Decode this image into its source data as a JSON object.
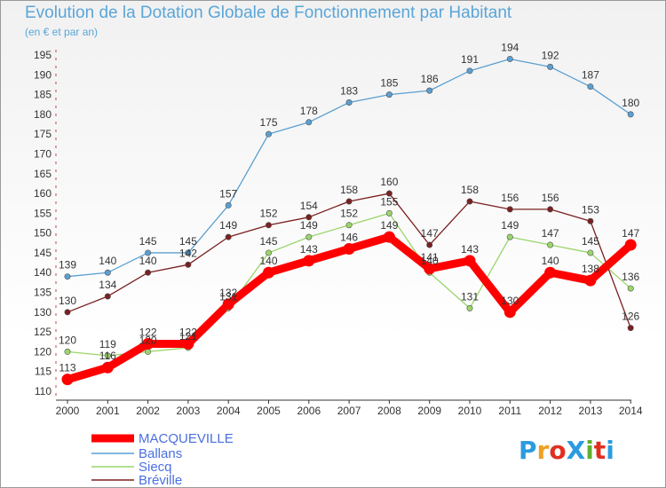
{
  "title": "Evolution de la Dotation Globale de Fonctionnement par Habitant",
  "subtitle": "(en € et par an)",
  "logo": {
    "text": "ProXiti",
    "colors": [
      "#2b9be0",
      "#f0a020",
      "#e03020",
      "#2b9be0",
      "#60b030",
      "#e03020",
      "#2b9be0"
    ]
  },
  "chart_data": {
    "type": "line",
    "x": [
      2000,
      2001,
      2002,
      2003,
      2004,
      2005,
      2006,
      2007,
      2008,
      2009,
      2010,
      2011,
      2012,
      2013,
      2014
    ],
    "ylim": [
      110,
      195
    ],
    "yticks": [
      110,
      115,
      120,
      125,
      130,
      135,
      140,
      145,
      150,
      155,
      160,
      165,
      170,
      175,
      180,
      185,
      190,
      195
    ],
    "grid": false,
    "legend": "bottom-left",
    "series": [
      {
        "name": "MACQUEVILLE",
        "color": "#ff0000",
        "values": [
          113,
          116,
          122,
          122,
          132,
          140,
          143,
          146,
          149,
          141,
          143,
          130,
          140,
          138,
          147
        ]
      },
      {
        "name": "Ballans",
        "color": "#5b9fd0",
        "values": [
          139,
          140,
          145,
          145,
          157,
          175,
          178,
          183,
          185,
          186,
          191,
          194,
          192,
          187,
          180
        ]
      },
      {
        "name": "Siecq",
        "color": "#9ad56a",
        "values": [
          120,
          119,
          120,
          121,
          131,
          145,
          149,
          152,
          155,
          140,
          131,
          149,
          147,
          145,
          136
        ]
      },
      {
        "name": "Bréville",
        "color": "#7a2020",
        "values": [
          130,
          134,
          140,
          142,
          149,
          152,
          154,
          158,
          160,
          147,
          158,
          156,
          156,
          153,
          126
        ]
      }
    ]
  }
}
